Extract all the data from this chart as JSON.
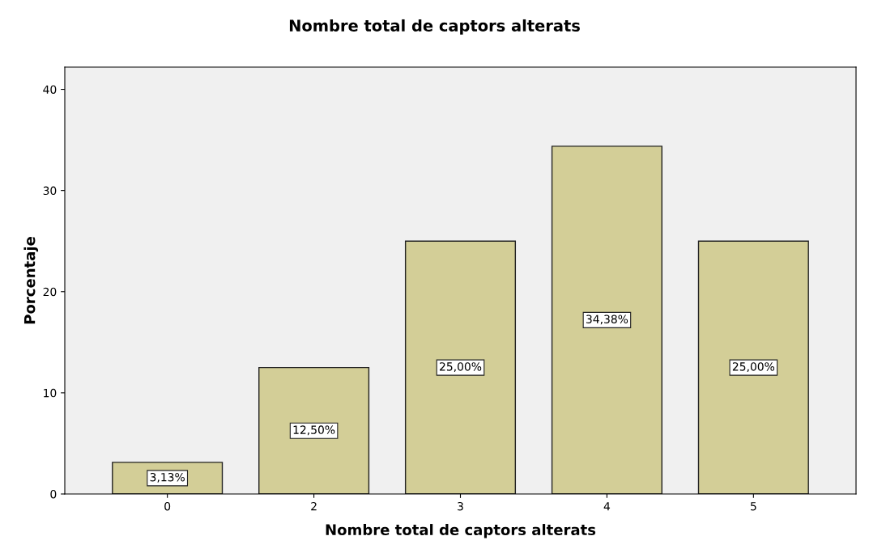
{
  "chart_data": {
    "type": "bar",
    "title": "Nombre total de captors alterats",
    "xlabel": "Nombre total de captors alterats",
    "ylabel": "Porcentaje",
    "categories": [
      "0",
      "2",
      "3",
      "4",
      "5"
    ],
    "values": [
      3.13,
      12.5,
      25,
      34.38,
      25
    ],
    "value_labels": [
      "3,13%",
      "12,50%",
      "25,00%",
      "34,38%",
      "25,00%"
    ],
    "color": "#d3ce97",
    "ylim": [
      0,
      42.2
    ],
    "yticks": [
      0,
      10,
      20,
      30,
      40
    ],
    "grid": false,
    "legend": false
  }
}
